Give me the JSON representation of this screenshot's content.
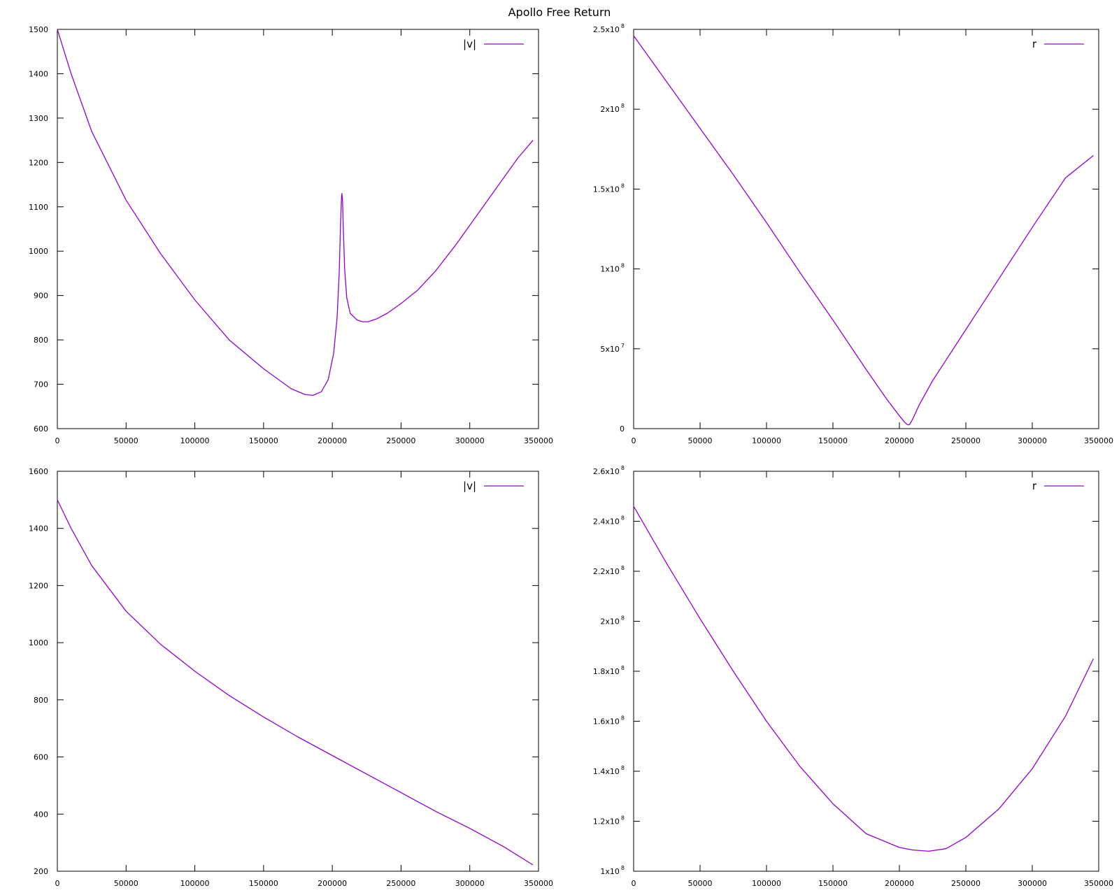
{
  "title": "Apollo Free Return",
  "colors": {
    "series": "#9400D3",
    "axis": "#000000",
    "background": "#ffffff"
  },
  "chart_data": [
    {
      "type": "line",
      "panel": "top-left",
      "legend": "|v|",
      "legend_position": "top-right",
      "grid": false,
      "xlim": [
        0,
        350000
      ],
      "ylim": [
        600,
        1500
      ],
      "x_ticks": [
        0,
        50000,
        100000,
        150000,
        200000,
        250000,
        300000,
        350000
      ],
      "x_tick_labels": [
        "0",
        "50000",
        "100000",
        "150000",
        "200000",
        "250000",
        "300000",
        "350000"
      ],
      "y_ticks": [
        600,
        700,
        800,
        900,
        1000,
        1100,
        1200,
        1300,
        1400,
        1500
      ],
      "y_tick_labels": [
        {
          "m": "600"
        },
        {
          "m": "700"
        },
        {
          "m": "800"
        },
        {
          "m": "900"
        },
        {
          "m": "1000"
        },
        {
          "m": "1100"
        },
        {
          "m": "1200"
        },
        {
          "m": "1300"
        },
        {
          "m": "1400"
        },
        {
          "m": "1500"
        }
      ],
      "series": [
        {
          "name": "|v|",
          "x": [
            0,
            10000,
            25000,
            50000,
            75000,
            100000,
            125000,
            150000,
            170000,
            180000,
            186000,
            192000,
            197000,
            201000,
            203500,
            205000,
            206000,
            206700,
            207000,
            207400,
            208000,
            209000,
            210500,
            213000,
            218000,
            222000,
            226000,
            232000,
            240000,
            250000,
            262000,
            275000,
            290000,
            305000,
            320000,
            335000,
            346000
          ],
          "y": [
            1500,
            1400,
            1270,
            1115,
            995,
            890,
            800,
            735,
            690,
            677,
            675,
            683,
            710,
            770,
            850,
            950,
            1060,
            1120,
            1130,
            1115,
            1050,
            960,
            895,
            860,
            845,
            841,
            841,
            847,
            860,
            882,
            912,
            955,
            1015,
            1080,
            1145,
            1210,
            1250
          ]
        }
      ]
    },
    {
      "type": "line",
      "panel": "top-right",
      "legend": "r",
      "legend_position": "top-right",
      "grid": false,
      "xlim": [
        0,
        350000
      ],
      "ylim": [
        0,
        250000000
      ],
      "x_ticks": [
        0,
        50000,
        100000,
        150000,
        200000,
        250000,
        300000,
        350000
      ],
      "x_tick_labels": [
        "0",
        "50000",
        "100000",
        "150000",
        "200000",
        "250000",
        "300000",
        "350000"
      ],
      "y_ticks": [
        0,
        50000000,
        100000000,
        150000000,
        200000000,
        250000000
      ],
      "y_tick_labels": [
        {
          "m": "0"
        },
        {
          "m": "5x10",
          "e": "7"
        },
        {
          "m": "1x10",
          "e": "8"
        },
        {
          "m": "1.5x10",
          "e": "8"
        },
        {
          "m": "2x10",
          "e": "8"
        },
        {
          "m": "2.5x10",
          "e": "8"
        }
      ],
      "series": [
        {
          "name": "r",
          "x": [
            0,
            25000,
            50000,
            75000,
            100000,
            125000,
            150000,
            175000,
            190000,
            200000,
            204000,
            206000,
            207000,
            208000,
            210000,
            215000,
            225000,
            250000,
            275000,
            300000,
            325000,
            346000
          ],
          "y": [
            246000000,
            217000000,
            188000000,
            159000000,
            129000000,
            98000000,
            68000000,
            37000000,
            19000000,
            8000000,
            4000000,
            2500000,
            2300000,
            3000000,
            6000000,
            15000000,
            30000000,
            62000000,
            94000000,
            126000000,
            157000000,
            171000000
          ]
        }
      ]
    },
    {
      "type": "line",
      "panel": "bottom-left",
      "legend": "|v|",
      "legend_position": "top-right",
      "grid": false,
      "xlim": [
        0,
        350000
      ],
      "ylim": [
        200,
        1600
      ],
      "x_ticks": [
        0,
        50000,
        100000,
        150000,
        200000,
        250000,
        300000,
        350000
      ],
      "x_tick_labels": [
        "0",
        "50000",
        "100000",
        "150000",
        "200000",
        "250000",
        "300000",
        "350000"
      ],
      "y_ticks": [
        200,
        400,
        600,
        800,
        1000,
        1200,
        1400,
        1600
      ],
      "y_tick_labels": [
        {
          "m": "200"
        },
        {
          "m": "400"
        },
        {
          "m": "600"
        },
        {
          "m": "800"
        },
        {
          "m": "1000"
        },
        {
          "m": "1200"
        },
        {
          "m": "1400"
        },
        {
          "m": "1600"
        }
      ],
      "series": [
        {
          "name": "|v|",
          "x": [
            0,
            10000,
            25000,
            50000,
            75000,
            100000,
            125000,
            150000,
            175000,
            200000,
            225000,
            250000,
            275000,
            300000,
            325000,
            346000
          ],
          "y": [
            1500,
            1400,
            1270,
            1110,
            995,
            900,
            815,
            740,
            670,
            605,
            540,
            475,
            410,
            350,
            285,
            222
          ]
        }
      ]
    },
    {
      "type": "line",
      "panel": "bottom-right",
      "legend": "r",
      "legend_position": "top-right",
      "grid": false,
      "xlim": [
        0,
        350000
      ],
      "ylim": [
        100000000,
        260000000
      ],
      "x_ticks": [
        0,
        50000,
        100000,
        150000,
        200000,
        250000,
        300000,
        350000
      ],
      "x_tick_labels": [
        "0",
        "50000",
        "100000",
        "150000",
        "200000",
        "250000",
        "300000",
        "350000"
      ],
      "y_ticks": [
        100000000,
        120000000,
        140000000,
        160000000,
        180000000,
        200000000,
        220000000,
        240000000,
        260000000
      ],
      "y_tick_labels": [
        {
          "m": "1x10",
          "e": "8"
        },
        {
          "m": "1.2x10",
          "e": "8"
        },
        {
          "m": "1.4x10",
          "e": "8"
        },
        {
          "m": "1.6x10",
          "e": "8"
        },
        {
          "m": "1.8x10",
          "e": "8"
        },
        {
          "m": "2x10",
          "e": "8"
        },
        {
          "m": "2.2x10",
          "e": "8"
        },
        {
          "m": "2.4x10",
          "e": "8"
        },
        {
          "m": "2.6x10",
          "e": "8"
        }
      ],
      "series": [
        {
          "name": "r",
          "x": [
            0,
            25000,
            50000,
            75000,
            100000,
            125000,
            150000,
            175000,
            200000,
            210000,
            222000,
            235000,
            250000,
            275000,
            300000,
            325000,
            346000
          ],
          "y": [
            246000000,
            223000000,
            201000000,
            180000000,
            160000000,
            142000000,
            127000000,
            115000000,
            109500000,
            108500000,
            108000000,
            109000000,
            113500000,
            125000000,
            141000000,
            162000000,
            185000000
          ]
        }
      ]
    }
  ]
}
